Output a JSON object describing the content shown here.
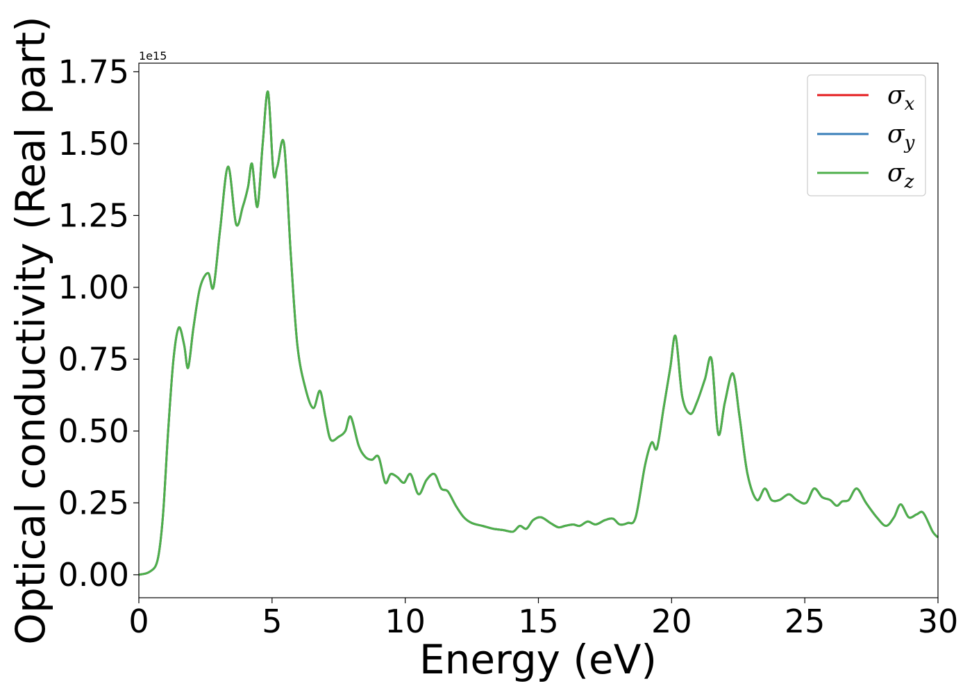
{
  "chart_data": {
    "type": "line",
    "xlabel": "Energy (eV)",
    "ylabel": "Optical conductivity (Real part)",
    "y_offset_label": "1e15",
    "xlim": [
      0,
      30
    ],
    "ylim": [
      -0.08,
      1.78
    ],
    "x_ticks": [
      0,
      5,
      10,
      15,
      20,
      25,
      30
    ],
    "x_tick_labels": [
      "0",
      "5",
      "10",
      "15",
      "20",
      "25",
      "30"
    ],
    "y_ticks": [
      0.0,
      0.25,
      0.5,
      0.75,
      1.0,
      1.25,
      1.5,
      1.75
    ],
    "y_tick_labels": [
      "0.00",
      "0.25",
      "0.50",
      "0.75",
      "1.00",
      "1.25",
      "1.50",
      "1.75"
    ],
    "grid": false,
    "legend_position": "top-right",
    "x": [
      0.0,
      0.4,
      0.7,
      0.9,
      1.1,
      1.3,
      1.5,
      1.7,
      1.85,
      2.05,
      2.3,
      2.6,
      2.8,
      3.05,
      3.35,
      3.65,
      3.9,
      4.1,
      4.25,
      4.45,
      4.65,
      4.85,
      5.05,
      5.2,
      5.45,
      5.7,
      5.95,
      6.25,
      6.55,
      6.8,
      7.0,
      7.2,
      7.5,
      7.75,
      7.95,
      8.25,
      8.5,
      8.75,
      9.0,
      9.25,
      9.45,
      9.7,
      9.95,
      10.2,
      10.5,
      10.8,
      11.1,
      11.35,
      11.6,
      11.9,
      12.2,
      12.5,
      12.9,
      13.3,
      13.7,
      14.05,
      14.3,
      14.55,
      14.8,
      15.1,
      15.45,
      15.75,
      16.0,
      16.3,
      16.55,
      16.85,
      17.15,
      17.5,
      17.8,
      18.05,
      18.35,
      18.65,
      19.0,
      19.25,
      19.45,
      19.7,
      19.95,
      20.15,
      20.4,
      20.7,
      20.95,
      21.25,
      21.5,
      21.75,
      22.0,
      22.3,
      22.55,
      22.85,
      23.2,
      23.5,
      23.75,
      24.05,
      24.4,
      24.7,
      25.05,
      25.35,
      25.65,
      25.95,
      26.2,
      26.4,
      26.65,
      26.95,
      27.3,
      27.7,
      28.05,
      28.35,
      28.6,
      28.9,
      29.2,
      29.45,
      29.8,
      30.0
    ],
    "series": [
      {
        "name": "σx",
        "color": "#e41a1c",
        "values": [
          0.0,
          0.01,
          0.05,
          0.2,
          0.5,
          0.75,
          0.86,
          0.8,
          0.72,
          0.86,
          1.0,
          1.05,
          1.0,
          1.2,
          1.42,
          1.22,
          1.28,
          1.35,
          1.43,
          1.28,
          1.5,
          1.68,
          1.4,
          1.42,
          1.5,
          1.12,
          0.8,
          0.65,
          0.58,
          0.64,
          0.55,
          0.47,
          0.48,
          0.5,
          0.55,
          0.45,
          0.41,
          0.4,
          0.41,
          0.32,
          0.35,
          0.34,
          0.32,
          0.35,
          0.28,
          0.33,
          0.35,
          0.3,
          0.29,
          0.24,
          0.2,
          0.18,
          0.17,
          0.16,
          0.155,
          0.15,
          0.17,
          0.16,
          0.19,
          0.2,
          0.18,
          0.165,
          0.17,
          0.175,
          0.17,
          0.185,
          0.175,
          0.19,
          0.195,
          0.175,
          0.18,
          0.2,
          0.38,
          0.46,
          0.44,
          0.58,
          0.72,
          0.83,
          0.62,
          0.56,
          0.6,
          0.68,
          0.75,
          0.49,
          0.6,
          0.7,
          0.55,
          0.35,
          0.26,
          0.3,
          0.26,
          0.26,
          0.28,
          0.26,
          0.25,
          0.3,
          0.27,
          0.26,
          0.24,
          0.255,
          0.26,
          0.3,
          0.25,
          0.2,
          0.17,
          0.2,
          0.245,
          0.2,
          0.21,
          0.215,
          0.15,
          0.13
        ]
      },
      {
        "name": "σy",
        "color": "#377eb8",
        "values": [
          0.0,
          0.01,
          0.05,
          0.2,
          0.5,
          0.75,
          0.86,
          0.8,
          0.72,
          0.86,
          1.0,
          1.05,
          1.0,
          1.2,
          1.42,
          1.22,
          1.28,
          1.35,
          1.43,
          1.28,
          1.5,
          1.68,
          1.4,
          1.42,
          1.5,
          1.12,
          0.8,
          0.65,
          0.58,
          0.64,
          0.55,
          0.47,
          0.48,
          0.5,
          0.55,
          0.45,
          0.41,
          0.4,
          0.41,
          0.32,
          0.35,
          0.34,
          0.32,
          0.35,
          0.28,
          0.33,
          0.35,
          0.3,
          0.29,
          0.24,
          0.2,
          0.18,
          0.17,
          0.16,
          0.155,
          0.15,
          0.17,
          0.16,
          0.19,
          0.2,
          0.18,
          0.165,
          0.17,
          0.175,
          0.17,
          0.185,
          0.175,
          0.19,
          0.195,
          0.175,
          0.18,
          0.2,
          0.38,
          0.46,
          0.44,
          0.58,
          0.72,
          0.83,
          0.62,
          0.56,
          0.6,
          0.68,
          0.75,
          0.49,
          0.6,
          0.7,
          0.55,
          0.35,
          0.26,
          0.3,
          0.26,
          0.26,
          0.28,
          0.26,
          0.25,
          0.3,
          0.27,
          0.26,
          0.24,
          0.255,
          0.26,
          0.3,
          0.25,
          0.2,
          0.17,
          0.2,
          0.245,
          0.2,
          0.21,
          0.215,
          0.15,
          0.13
        ]
      },
      {
        "name": "σz",
        "color": "#4daf4a",
        "values": [
          0.0,
          0.01,
          0.05,
          0.2,
          0.5,
          0.75,
          0.86,
          0.8,
          0.72,
          0.86,
          1.0,
          1.05,
          1.0,
          1.2,
          1.42,
          1.22,
          1.28,
          1.35,
          1.43,
          1.28,
          1.5,
          1.68,
          1.4,
          1.42,
          1.5,
          1.12,
          0.8,
          0.65,
          0.58,
          0.64,
          0.55,
          0.47,
          0.48,
          0.5,
          0.55,
          0.45,
          0.41,
          0.4,
          0.41,
          0.32,
          0.35,
          0.34,
          0.32,
          0.35,
          0.28,
          0.33,
          0.35,
          0.3,
          0.29,
          0.24,
          0.2,
          0.18,
          0.17,
          0.16,
          0.155,
          0.15,
          0.17,
          0.16,
          0.19,
          0.2,
          0.18,
          0.165,
          0.17,
          0.175,
          0.17,
          0.185,
          0.175,
          0.19,
          0.195,
          0.175,
          0.18,
          0.2,
          0.38,
          0.46,
          0.44,
          0.58,
          0.72,
          0.83,
          0.62,
          0.56,
          0.6,
          0.68,
          0.75,
          0.49,
          0.6,
          0.7,
          0.55,
          0.35,
          0.26,
          0.3,
          0.26,
          0.26,
          0.28,
          0.26,
          0.25,
          0.3,
          0.27,
          0.26,
          0.24,
          0.255,
          0.26,
          0.3,
          0.25,
          0.2,
          0.17,
          0.2,
          0.245,
          0.2,
          0.21,
          0.215,
          0.15,
          0.13
        ]
      }
    ],
    "legend": [
      {
        "symbol": "σ",
        "sub": "x"
      },
      {
        "symbol": "σ",
        "sub": "y"
      },
      {
        "symbol": "σ",
        "sub": "z"
      }
    ]
  }
}
